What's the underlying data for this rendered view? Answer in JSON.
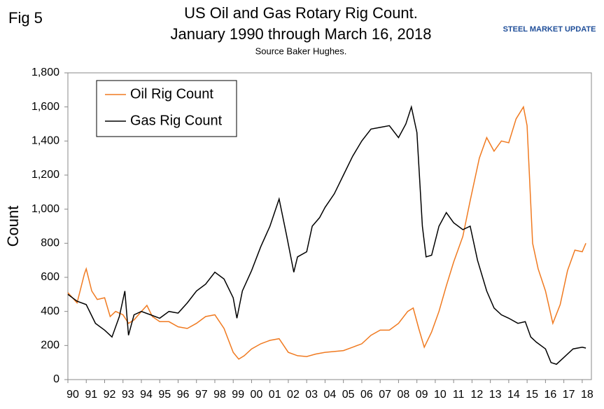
{
  "chart_data": {
    "type": "line",
    "figure_label": "Fig 5",
    "title": "US Oil and Gas Rotary Rig Count.",
    "title_line2": "January 1990 through March 16, 2018",
    "subtitle": "Source Baker Hughes.",
    "logo": "STEEL MARKET UPDATE",
    "y_label": "Count",
    "xlim": [
      1990,
      2018.5
    ],
    "xticks": [
      {
        "value": 1990,
        "label": "90"
      },
      {
        "value": 1991,
        "label": "91"
      },
      {
        "value": 1992,
        "label": "92"
      },
      {
        "value": 1993,
        "label": "93"
      },
      {
        "value": 1994,
        "label": "94"
      },
      {
        "value": 1995,
        "label": "95"
      },
      {
        "value": 1996,
        "label": "96"
      },
      {
        "value": 1997,
        "label": "97"
      },
      {
        "value": 1998,
        "label": "98"
      },
      {
        "value": 1999,
        "label": "99"
      },
      {
        "value": 2000,
        "label": "00"
      },
      {
        "value": 2001,
        "label": "01"
      },
      {
        "value": 2002,
        "label": "02"
      },
      {
        "value": 2003,
        "label": "03"
      },
      {
        "value": 2004,
        "label": "04"
      },
      {
        "value": 2005,
        "label": "05"
      },
      {
        "value": 2006,
        "label": "06"
      },
      {
        "value": 2007,
        "label": "07"
      },
      {
        "value": 2008,
        "label": "08"
      },
      {
        "value": 2009,
        "label": "09"
      },
      {
        "value": 2010,
        "label": "10"
      },
      {
        "value": 2011,
        "label": "11"
      },
      {
        "value": 2012,
        "label": "12"
      },
      {
        "value": 2013,
        "label": "13"
      },
      {
        "value": 2014,
        "label": "14"
      },
      {
        "value": 2015,
        "label": "15"
      },
      {
        "value": 2016,
        "label": "16"
      },
      {
        "value": 2017,
        "label": "17"
      },
      {
        "value": 2018,
        "label": "18"
      }
    ],
    "ylim": [
      0,
      1800
    ],
    "yticks": [
      0,
      200,
      400,
      600,
      800,
      {
        "value": 1000,
        "label": "1,000"
      },
      {
        "value": 1200,
        "label": "1,200"
      },
      {
        "value": 1400,
        "label": "1,400"
      },
      {
        "value": 1600,
        "label": "1,600"
      },
      {
        "value": 1800,
        "label": "1,800"
      }
    ],
    "grid": false,
    "legend": "upper-left",
    "series": [
      {
        "name": "Oil Rig Count",
        "color": "#f07a20",
        "x": [
          1990.0,
          1990.5,
          1990.9,
          1991.0,
          1991.3,
          1991.6,
          1992.0,
          1992.3,
          1992.6,
          1993.0,
          1993.3,
          1993.6,
          1994.0,
          1994.3,
          1994.6,
          1995.0,
          1995.5,
          1996.0,
          1996.5,
          1997.0,
          1997.5,
          1998.0,
          1998.5,
          1999.0,
          1999.3,
          1999.6,
          2000.0,
          2000.5,
          2001.0,
          2001.5,
          2002.0,
          2002.5,
          2003.0,
          2003.5,
          2004.0,
          2004.5,
          2005.0,
          2005.5,
          2006.0,
          2006.5,
          2007.0,
          2007.5,
          2008.0,
          2008.5,
          2008.8,
          2009.1,
          2009.4,
          2009.8,
          2010.2,
          2010.6,
          2011.0,
          2011.5,
          2011.9,
          2012.4,
          2012.8,
          2013.2,
          2013.6,
          2014.0,
          2014.4,
          2014.8,
          2015.0,
          2015.3,
          2015.6,
          2016.0,
          2016.4,
          2016.8,
          2017.2,
          2017.6,
          2018.0,
          2018.2
        ],
        "values": [
          510,
          450,
          620,
          650,
          520,
          470,
          480,
          370,
          400,
          380,
          330,
          350,
          400,
          435,
          370,
          340,
          340,
          310,
          300,
          330,
          370,
          380,
          300,
          160,
          120,
          140,
          180,
          210,
          230,
          240,
          160,
          140,
          135,
          150,
          160,
          165,
          170,
          190,
          210,
          260,
          290,
          290,
          330,
          400,
          420,
          300,
          190,
          280,
          400,
          550,
          690,
          840,
          1050,
          1300,
          1420,
          1340,
          1400,
          1390,
          1530,
          1600,
          1490,
          800,
          650,
          520,
          330,
          440,
          640,
          760,
          750,
          800
        ]
      },
      {
        "name": "Gas Rig Count",
        "color": "#000000",
        "x": [
          1990.0,
          1990.5,
          1991.0,
          1991.5,
          1992.0,
          1992.4,
          1992.8,
          1993.1,
          1993.3,
          1993.6,
          1994.0,
          1994.5,
          1995.0,
          1995.5,
          1996.0,
          1996.5,
          1997.0,
          1997.5,
          1998.0,
          1998.5,
          1999.0,
          1999.2,
          1999.5,
          2000.0,
          2000.5,
          2001.0,
          2001.5,
          2001.9,
          2002.3,
          2002.5,
          2003.0,
          2003.3,
          2003.7,
          2004.0,
          2004.5,
          2005.0,
          2005.5,
          2006.0,
          2006.5,
          2007.0,
          2007.5,
          2008.0,
          2008.4,
          2008.7,
          2009.0,
          2009.3,
          2009.5,
          2009.8,
          2010.2,
          2010.6,
          2011.0,
          2011.5,
          2011.9,
          2012.3,
          2012.8,
          2013.2,
          2013.6,
          2014.0,
          2014.5,
          2014.9,
          2015.2,
          2015.5,
          2016.0,
          2016.3,
          2016.6,
          2017.0,
          2017.5,
          2018.0,
          2018.2
        ],
        "values": [
          500,
          460,
          440,
          330,
          290,
          250,
          370,
          520,
          260,
          380,
          400,
          380,
          360,
          400,
          390,
          450,
          520,
          560,
          630,
          590,
          480,
          360,
          520,
          640,
          780,
          900,
          1060,
          850,
          630,
          720,
          750,
          900,
          950,
          1010,
          1090,
          1200,
          1310,
          1400,
          1470,
          1480,
          1490,
          1420,
          1500,
          1600,
          1450,
          900,
          720,
          730,
          900,
          980,
          920,
          880,
          900,
          700,
          520,
          420,
          380,
          360,
          330,
          340,
          250,
          220,
          180,
          100,
          90,
          130,
          180,
          190,
          185
        ]
      }
    ]
  }
}
